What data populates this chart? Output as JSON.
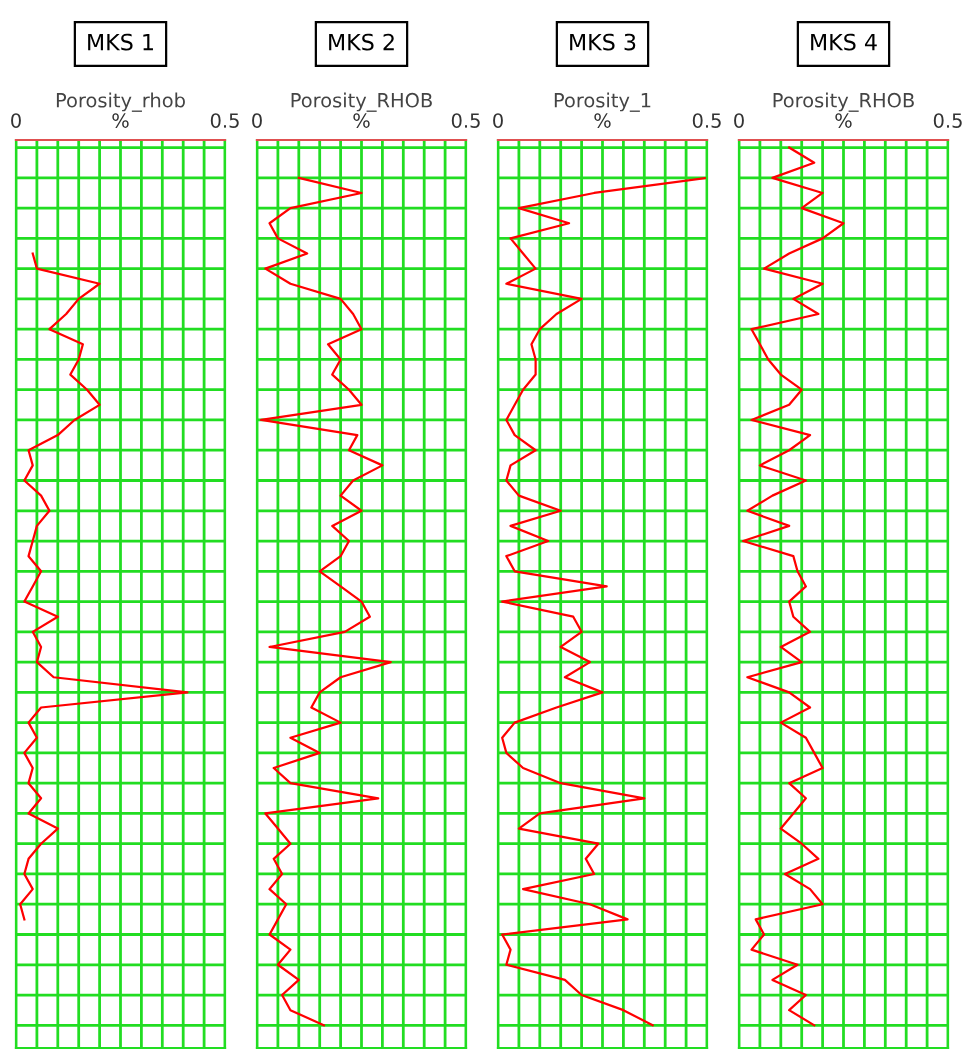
{
  "chart_data": [
    {
      "type": "line",
      "orientation": "horizontal",
      "title": "MKS 1",
      "xlabel": "Porosity_rhob",
      "xlim": [
        0,
        0.5
      ],
      "xticks": [
        0,
        {
          "value": 0.05,
          "label": null
        },
        {
          "value": 0.1,
          "label": null
        },
        {
          "value": 0.15,
          "label": null
        },
        {
          "value": 0.2,
          "label": null
        },
        {
          "value": 0.25,
          "label": "%"
        },
        {
          "value": 0.3,
          "label": null
        },
        {
          "value": 0.35,
          "label": null
        },
        {
          "value": 0.4,
          "label": null
        },
        {
          "value": 0.45,
          "label": null
        },
        0.5
      ],
      "grid": true,
      "tick_labels": "x",
      "categories": [
        null,
        null,
        null,
        null,
        null,
        null,
        null,
        null,
        null,
        null,
        null,
        null,
        null,
        null,
        null,
        null,
        null,
        null,
        null,
        null,
        null,
        null,
        null,
        null,
        null,
        null,
        null,
        null,
        null,
        null,
        null,
        null,
        null,
        null,
        null,
        null,
        null,
        null,
        null,
        null,
        null,
        null,
        null,
        null,
        null,
        null,
        null,
        null,
        null,
        null,
        null,
        null,
        null,
        null,
        null,
        null,
        null,
        null,
        null,
        null
      ],
      "series": [
        {
          "color": "#ff0000",
          "values": [
            null,
            null,
            null,
            null,
            null,
            null,
            null,
            0.04,
            0.05,
            0.2,
            0.15,
            0.12,
            0.08,
            0.16,
            0.15,
            0.13,
            0.17,
            0.2,
            0.14,
            0.1,
            0.03,
            0.04,
            0.02,
            0.06,
            0.08,
            0.05,
            0.04,
            0.03,
            0.06,
            0.04,
            0.02,
            0.1,
            0.04,
            0.06,
            0.05,
            0.09,
            0.41,
            0.06,
            0.03,
            0.05,
            0.02,
            0.04,
            0.03,
            0.06,
            0.03,
            0.1,
            0.06,
            0.03,
            0.02,
            0.04,
            0.01,
            0.02,
            null,
            null,
            null,
            null,
            null,
            null,
            null,
            null
          ]
        }
      ]
    },
    {
      "type": "line",
      "orientation": "horizontal",
      "title": "MKS 2",
      "xlabel": "Porosity_RHOB",
      "xlim": [
        0,
        0.5
      ],
      "xticks": [
        0,
        {
          "value": 0.05,
          "label": null
        },
        {
          "value": 0.1,
          "label": null
        },
        {
          "value": 0.15,
          "label": null
        },
        {
          "value": 0.2,
          "label": null
        },
        {
          "value": 0.25,
          "label": "%"
        },
        {
          "value": 0.3,
          "label": null
        },
        {
          "value": 0.35,
          "label": null
        },
        {
          "value": 0.4,
          "label": null
        },
        {
          "value": 0.45,
          "label": null
        },
        0.5
      ],
      "grid": true,
      "tick_labels": "x",
      "categories": [
        null,
        null,
        null,
        null,
        null,
        null,
        null,
        null,
        null,
        null,
        null,
        null,
        null,
        null,
        null,
        null,
        null,
        null,
        null,
        null,
        null,
        null,
        null,
        null,
        null,
        null,
        null,
        null,
        null,
        null,
        null,
        null,
        null,
        null,
        null,
        null,
        null,
        null,
        null,
        null,
        null,
        null,
        null,
        null,
        null,
        null,
        null,
        null,
        null,
        null,
        null,
        null,
        null,
        null,
        null,
        null,
        null,
        null,
        null,
        null
      ],
      "series": [
        {
          "color": "#ff0000",
          "values": [
            null,
            null,
            0.1,
            0.25,
            0.08,
            0.03,
            0.05,
            0.12,
            0.02,
            0.08,
            0.2,
            0.23,
            0.25,
            0.17,
            0.2,
            0.18,
            0.22,
            0.25,
            0.01,
            0.24,
            0.22,
            0.3,
            0.23,
            0.2,
            0.25,
            0.18,
            0.22,
            0.2,
            0.15,
            0.2,
            0.25,
            0.27,
            0.21,
            0.03,
            0.32,
            0.2,
            0.15,
            0.13,
            0.2,
            0.08,
            0.15,
            0.04,
            0.08,
            0.29,
            0.02,
            0.05,
            0.08,
            0.04,
            0.06,
            0.03,
            0.07,
            0.05,
            0.03,
            0.08,
            0.05,
            0.1,
            0.06,
            0.08,
            0.16,
            null
          ]
        }
      ]
    },
    {
      "type": "line",
      "orientation": "horizontal",
      "title": "MKS 3",
      "xlabel": "Porosity_1",
      "xlim": [
        0,
        0.5
      ],
      "xticks": [
        0,
        {
          "value": 0.05,
          "label": null
        },
        {
          "value": 0.1,
          "label": null
        },
        {
          "value": 0.15,
          "label": null
        },
        {
          "value": 0.2,
          "label": null
        },
        {
          "value": 0.25,
          "label": "%"
        },
        {
          "value": 0.3,
          "label": null
        },
        {
          "value": 0.35,
          "label": null
        },
        {
          "value": 0.4,
          "label": null
        },
        {
          "value": 0.45,
          "label": null
        },
        0.5
      ],
      "grid": true,
      "tick_labels": "x",
      "categories": [
        null,
        null,
        null,
        null,
        null,
        null,
        null,
        null,
        null,
        null,
        null,
        null,
        null,
        null,
        null,
        null,
        null,
        null,
        null,
        null,
        null,
        null,
        null,
        null,
        null,
        null,
        null,
        null,
        null,
        null,
        null,
        null,
        null,
        null,
        null,
        null,
        null,
        null,
        null,
        null,
        null,
        null,
        null,
        null,
        null,
        null,
        null,
        null,
        null,
        null,
        null,
        null,
        null,
        null,
        null,
        null,
        null,
        null,
        null,
        null
      ],
      "series": [
        {
          "color": "#ff0000",
          "values": [
            null,
            null,
            0.5,
            0.23,
            0.05,
            0.17,
            0.03,
            0.06,
            0.09,
            0.02,
            0.2,
            0.14,
            0.1,
            0.08,
            0.09,
            0.09,
            0.06,
            0.04,
            0.02,
            0.04,
            0.09,
            0.03,
            0.02,
            0.05,
            0.15,
            0.03,
            0.12,
            0.02,
            0.04,
            0.26,
            0.01,
            0.18,
            0.2,
            0.15,
            0.22,
            0.16,
            0.25,
            0.14,
            0.04,
            0.01,
            0.02,
            0.06,
            0.15,
            0.35,
            0.1,
            0.05,
            0.24,
            0.21,
            0.23,
            0.06,
            0.22,
            0.31,
            0.01,
            0.03,
            0.02,
            0.16,
            0.2,
            0.3,
            0.37,
            null
          ]
        }
      ]
    },
    {
      "type": "line",
      "orientation": "horizontal",
      "title": "MKS 4",
      "xlabel": "Porosity_RHOB",
      "xlim": [
        0,
        0.5
      ],
      "xticks": [
        0,
        {
          "value": 0.05,
          "label": null
        },
        {
          "value": 0.1,
          "label": null
        },
        {
          "value": 0.15,
          "label": null
        },
        {
          "value": 0.2,
          "label": null
        },
        {
          "value": 0.25,
          "label": "%"
        },
        {
          "value": 0.3,
          "label": null
        },
        {
          "value": 0.35,
          "label": null
        },
        {
          "value": 0.4,
          "label": null
        },
        {
          "value": 0.45,
          "label": null
        },
        0.5
      ],
      "grid": true,
      "tick_labels": "x",
      "categories": [
        null,
        null,
        null,
        null,
        null,
        null,
        null,
        null,
        null,
        null,
        null,
        null,
        null,
        null,
        null,
        null,
        null,
        null,
        null,
        null,
        null,
        null,
        null,
        null,
        null,
        null,
        null,
        null,
        null,
        null,
        null,
        null,
        null,
        null,
        null,
        null,
        null,
        null,
        null,
        null,
        null,
        null,
        null,
        null,
        null,
        null,
        null,
        null,
        null,
        null,
        null,
        null,
        null,
        null,
        null,
        null,
        null,
        null,
        null,
        null
      ],
      "series": [
        {
          "color": "#ff0000",
          "values": [
            0.12,
            0.18,
            0.08,
            0.2,
            0.15,
            0.25,
            0.2,
            0.12,
            0.06,
            0.2,
            0.13,
            0.19,
            0.03,
            0.05,
            0.07,
            0.1,
            0.15,
            0.12,
            0.03,
            0.17,
            0.12,
            0.05,
            0.16,
            0.08,
            0.02,
            0.12,
            0.01,
            0.13,
            0.14,
            0.16,
            0.12,
            0.13,
            0.17,
            0.1,
            0.15,
            0.02,
            0.12,
            0.17,
            0.1,
            0.16,
            0.18,
            0.2,
            0.12,
            0.16,
            0.13,
            0.1,
            0.15,
            0.19,
            0.11,
            0.17,
            0.2,
            0.04,
            0.06,
            0.03,
            0.14,
            0.08,
            0.16,
            0.12,
            0.18,
            null
          ]
        }
      ]
    }
  ]
}
